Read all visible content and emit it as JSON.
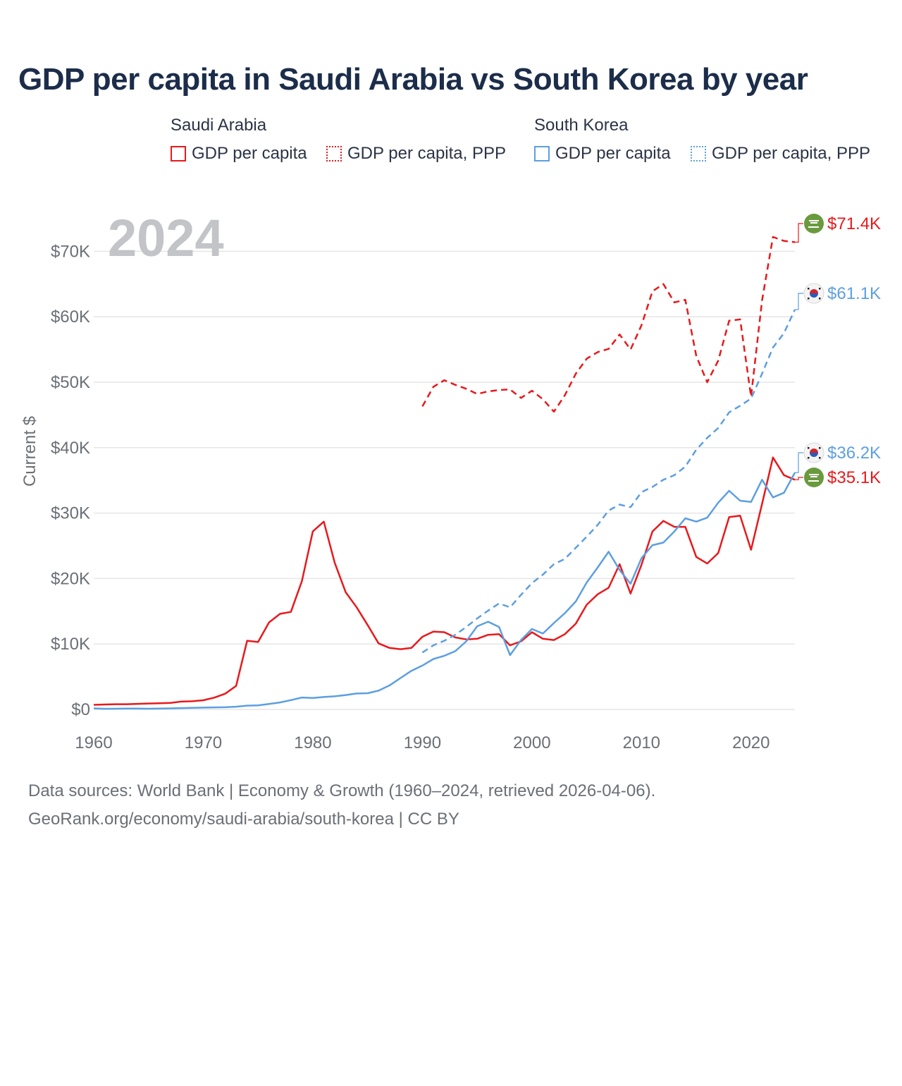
{
  "title": "GDP per capita in Saudi Arabia vs South Korea by year",
  "legend": {
    "groups": [
      {
        "name": "Saudi Arabia",
        "color": "#e8191c",
        "items": [
          "GDP per capita",
          "GDP per capita, PPP"
        ]
      },
      {
        "name": "South Korea",
        "color": "#5d9fe0",
        "items": [
          "GDP per capita",
          "GDP per capita, PPP"
        ]
      }
    ]
  },
  "year_watermark": "2024",
  "footer": {
    "line1": "Data sources: World Bank | Economy & Growth (1960–2024, retrieved 2026-04-06).",
    "line2": "GeoRank.org/economy/saudi-arabia/south-korea | CC BY"
  },
  "chart_data": {
    "type": "line",
    "ylabel": "Current $",
    "xlim": [
      1960,
      2024
    ],
    "ylim": [
      0,
      75000
    ],
    "xticks": [
      1960,
      1970,
      1980,
      1990,
      2000,
      2010,
      2020
    ],
    "xtick_labels": [
      "1960",
      "1970",
      "1980",
      "1990",
      "2000",
      "2010",
      "2020"
    ],
    "yticks": [
      0,
      10000,
      20000,
      30000,
      40000,
      50000,
      60000,
      70000
    ],
    "ytick_labels": [
      "$0",
      "$10K",
      "$20K",
      "$30K",
      "$40K",
      "$50K",
      "$60K",
      "$70K"
    ],
    "grid": true,
    "series": [
      {
        "name": "Saudi Arabia GDP per capita",
        "country": "Saudi Arabia",
        "color": "#e8191c",
        "dash": "solid",
        "end_label": "$35.1K",
        "x": [
          1960,
          1961,
          1962,
          1963,
          1964,
          1965,
          1966,
          1967,
          1968,
          1969,
          1970,
          1971,
          1972,
          1973,
          1974,
          1975,
          1976,
          1977,
          1978,
          1979,
          1980,
          1981,
          1982,
          1983,
          1984,
          1985,
          1986,
          1987,
          1988,
          1989,
          1990,
          1991,
          1992,
          1993,
          1994,
          1995,
          1996,
          1997,
          1998,
          1999,
          2000,
          2001,
          2002,
          2003,
          2004,
          2005,
          2006,
          2007,
          2008,
          2009,
          2010,
          2011,
          2012,
          2013,
          2014,
          2015,
          2016,
          2017,
          2018,
          2019,
          2020,
          2021,
          2022,
          2023,
          2024
        ],
        "values": [
          700,
          750,
          800,
          800,
          850,
          900,
          950,
          1000,
          1200,
          1250,
          1400,
          1800,
          2400,
          3600,
          10500,
          10300,
          13300,
          14600,
          14900,
          19600,
          27200,
          28700,
          22400,
          17900,
          15600,
          12900,
          10100,
          9400,
          9200,
          9400,
          11100,
          11900,
          11800,
          11000,
          10700,
          10800,
          11400,
          11500,
          9800,
          10400,
          11800,
          10800,
          10600,
          11500,
          13100,
          16000,
          17600,
          18600,
          22200,
          17700,
          22100,
          27200,
          28800,
          27900,
          27900,
          23300,
          22300,
          23900,
          29400,
          29600,
          24400,
          31400,
          38500,
          35800,
          35100
        ]
      },
      {
        "name": "Saudi Arabia GDP per capita, PPP",
        "country": "Saudi Arabia",
        "color": "#e8191c",
        "dash": "dashed",
        "end_label": "$71.4K",
        "x": [
          1990,
          1991,
          1992,
          1993,
          1994,
          1995,
          1996,
          1997,
          1998,
          1999,
          2000,
          2001,
          2002,
          2003,
          2004,
          2005,
          2006,
          2007,
          2008,
          2009,
          2010,
          2011,
          2012,
          2013,
          2014,
          2015,
          2016,
          2017,
          2018,
          2019,
          2020,
          2021,
          2022,
          2023,
          2024
        ],
        "values": [
          46300,
          49300,
          50300,
          49600,
          49000,
          48200,
          48600,
          48800,
          48900,
          47600,
          48700,
          47400,
          45500,
          48000,
          51300,
          53600,
          54600,
          55100,
          57300,
          55000,
          58700,
          63900,
          65000,
          62200,
          62600,
          54000,
          50000,
          53300,
          59400,
          59600,
          47800,
          62500,
          72200,
          71600,
          71400
        ]
      },
      {
        "name": "South Korea GDP per capita",
        "country": "South Korea",
        "color": "#5d9fe0",
        "dash": "solid",
        "end_label": "$36.2K",
        "x": [
          1960,
          1961,
          1962,
          1963,
          1964,
          1965,
          1966,
          1967,
          1968,
          1969,
          1970,
          1971,
          1972,
          1973,
          1974,
          1975,
          1976,
          1977,
          1978,
          1979,
          1980,
          1981,
          1982,
          1983,
          1984,
          1985,
          1986,
          1987,
          1988,
          1989,
          1990,
          1991,
          1992,
          1993,
          1994,
          1995,
          1996,
          1997,
          1998,
          1999,
          2000,
          2001,
          2002,
          2003,
          2004,
          2005,
          2006,
          2007,
          2008,
          2009,
          2010,
          2011,
          2012,
          2013,
          2014,
          2015,
          2016,
          2017,
          2018,
          2019,
          2020,
          2021,
          2022,
          2023,
          2024
        ],
        "values": [
          160,
          95,
          110,
          145,
          125,
          110,
          135,
          160,
          200,
          250,
          280,
          310,
          330,
          420,
          580,
          620,
          840,
          1070,
          1420,
          1820,
          1750,
          1900,
          2000,
          2200,
          2430,
          2480,
          2870,
          3670,
          4800,
          5900,
          6700,
          7700,
          8200,
          8900,
          10400,
          12700,
          13400,
          12600,
          8300,
          10600,
          12300,
          11600,
          13200,
          14700,
          16500,
          19400,
          21700,
          24100,
          21300,
          19200,
          23100,
          25100,
          25500,
          27200,
          29200,
          28700,
          29300,
          31600,
          33400,
          31900,
          31700,
          35100,
          32400,
          33100,
          36200
        ]
      },
      {
        "name": "South Korea GDP per capita, PPP",
        "country": "South Korea",
        "color": "#5d9fe0",
        "dash": "dashed",
        "end_label": "$61.1K",
        "x": [
          1990,
          1991,
          1992,
          1993,
          1994,
          1995,
          1996,
          1997,
          1998,
          1999,
          2000,
          2001,
          2002,
          2003,
          2004,
          2005,
          2006,
          2007,
          2008,
          2009,
          2010,
          2011,
          2012,
          2013,
          2014,
          2015,
          2016,
          2017,
          2018,
          2019,
          2020,
          2021,
          2022,
          2023,
          2024
        ],
        "values": [
          8700,
          9800,
          10500,
          11400,
          12600,
          13900,
          15100,
          16200,
          15600,
          17500,
          19300,
          20600,
          22200,
          23000,
          24700,
          26400,
          28200,
          30400,
          31300,
          30900,
          33200,
          34000,
          35100,
          35800,
          37100,
          39700,
          41500,
          43000,
          45400,
          46400,
          47500,
          51300,
          55300,
          57500,
          61100
        ]
      }
    ]
  }
}
